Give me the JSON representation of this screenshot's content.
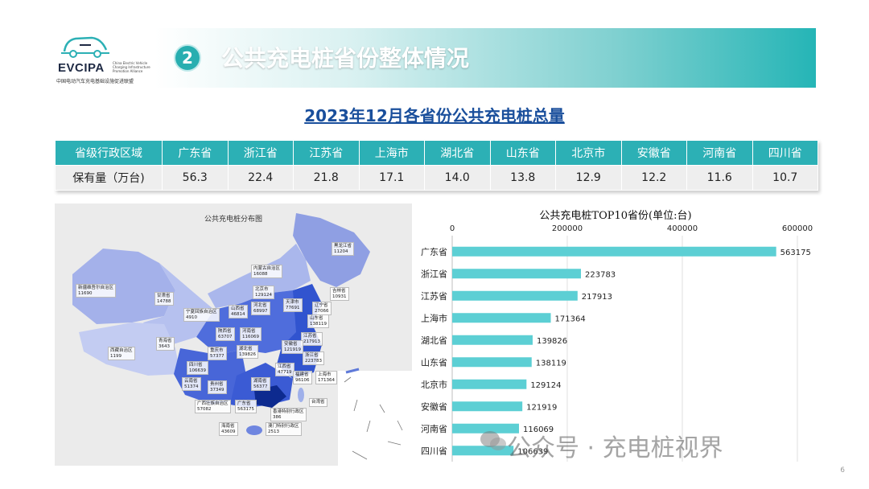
{
  "logo": {
    "brand": "EVCIPA",
    "subtitle_en": "China Electric Vehicle Charging Infrastructure Promotion Alliance",
    "subtitle_cn": "中国电动汽车充电基础设施促进联盟"
  },
  "header": {
    "badge": "2",
    "title": "公共充电桩省份整体情况"
  },
  "table": {
    "title": "2023年12月各省份公共充电桩总量",
    "row_header": "省级行政区域",
    "value_label": "保有量（万台)",
    "provinces": [
      "广东省",
      "浙江省",
      "江苏省",
      "上海市",
      "湖北省",
      "山东省",
      "北京市",
      "安徽省",
      "河南省",
      "四川省"
    ],
    "values": [
      "56.3",
      "22.4",
      "21.8",
      "17.1",
      "14.0",
      "13.8",
      "12.9",
      "12.2",
      "11.6",
      "10.7"
    ]
  },
  "map": {
    "title": "公共充电桩分布图",
    "labels": [
      {
        "text": "黑龙江省\n11204"
      },
      {
        "text": "内蒙古自治区\n16088"
      },
      {
        "text": "吉林省\n10931"
      },
      {
        "text": "新疆维吾尔自治区\n11690"
      },
      {
        "text": "甘肃省\n14788"
      },
      {
        "text": "北京市\n129124"
      },
      {
        "text": "天津市\n77691"
      },
      {
        "text": "辽宁省\n27066"
      },
      {
        "text": "宁夏回族自治区\n4910"
      },
      {
        "text": "山西省\n46814"
      },
      {
        "text": "河北省\n68997"
      },
      {
        "text": "山东省\n138119"
      },
      {
        "text": "青海省\n3643"
      },
      {
        "text": "陕西省\n63707"
      },
      {
        "text": "河南省\n116069"
      },
      {
        "text": "江苏省\n217913"
      },
      {
        "text": "西藏自治区\n1199"
      },
      {
        "text": "重庆市\n57377"
      },
      {
        "text": "湖北省\n139826"
      },
      {
        "text": "安徽省\n121919"
      },
      {
        "text": "浙江省\n223783"
      },
      {
        "text": "四川省\n106639"
      },
      {
        "text": "上海市\n171364"
      },
      {
        "text": "江西省\n47719"
      },
      {
        "text": "云南省\n51374"
      },
      {
        "text": "贵州省\n37349"
      },
      {
        "text": "湖南省\n56377"
      },
      {
        "text": "福建省\n96106"
      },
      {
        "text": "广西壮族自治区\n57082"
      },
      {
        "text": "广东省\n563175"
      },
      {
        "text": "台湾省"
      },
      {
        "text": "香港特别行政区\n386"
      },
      {
        "text": "海南省\n43609"
      },
      {
        "text": "澳门特别行政区\n2513"
      }
    ]
  },
  "chart_data": {
    "type": "bar",
    "orientation": "horizontal",
    "title": "公共充电桩TOP10省份(单位:台)",
    "categories": [
      "广东省",
      "浙江省",
      "江苏省",
      "上海市",
      "湖北省",
      "山东省",
      "北京市",
      "安徽省",
      "河南省",
      "四川省"
    ],
    "values": [
      563175,
      223783,
      217913,
      171364,
      139826,
      138119,
      129124,
      121919,
      116069,
      106639
    ],
    "xlim": [
      0,
      600000
    ],
    "xticks": [
      "0",
      "200000",
      "400000",
      "600000"
    ],
    "axis_position": "top",
    "grid": true,
    "bar_color": "#5ccfd4"
  },
  "footer": {
    "page": "6",
    "watermark": "公众号 · 充电桩视界"
  },
  "colors": {
    "accent": "#2cb0b5",
    "title_blue": "#1a4f9c"
  }
}
